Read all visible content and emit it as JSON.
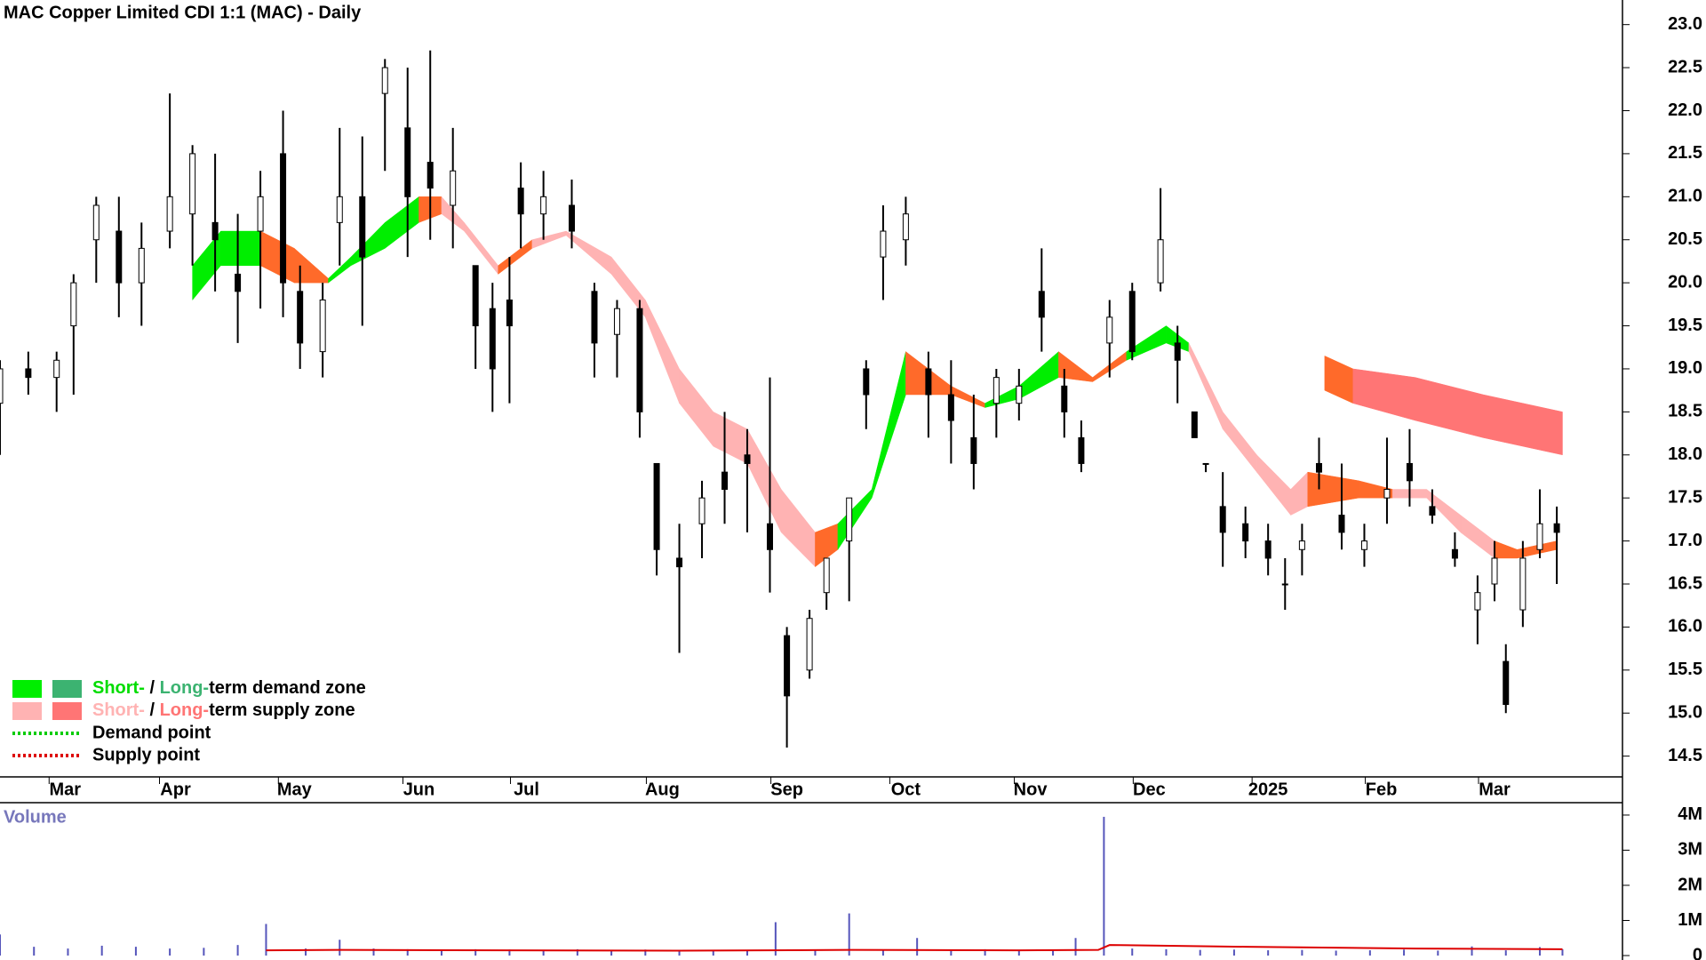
{
  "chart_data": {
    "type": "candlestick",
    "title": "MAC Copper Limited CDI 1:1 (MAC) - Daily",
    "x": [
      0,
      5,
      10,
      13,
      17,
      21,
      25,
      30,
      34,
      38,
      42,
      46,
      50,
      53,
      57,
      60,
      64,
      68,
      72,
      76,
      80,
      84,
      87,
      90,
      92,
      96,
      101,
      105,
      109,
      113,
      116,
      120,
      124,
      128,
      132,
      136,
      139,
      143,
      146,
      150,
      153,
      156,
      160,
      164,
      168,
      172,
      176,
      180,
      184,
      188,
      191,
      196,
      200,
      205,
      208,
      211,
      213,
      216,
      220,
      224,
      227,
      230,
      233,
      237,
      241,
      245,
      249,
      253,
      257,
      261,
      264,
      266,
      269,
      272,
      275
    ],
    "open": [
      18.6,
      19.0,
      18.9,
      19.5,
      20.5,
      20.6,
      20.0,
      20.6,
      20.8,
      20.7,
      20.1,
      20.6,
      21.5,
      19.9,
      19.2,
      20.7,
      21.0,
      22.2,
      21.8,
      21.4,
      20.9,
      20.2,
      19.7,
      19.8,
      21.1,
      20.8,
      20.9,
      19.9,
      19.4,
      19.7,
      17.9,
      16.8,
      17.2,
      17.8,
      18.0,
      17.2,
      15.9,
      15.5,
      16.4,
      17.0,
      19.0,
      20.3,
      20.5,
      19.0,
      18.7,
      18.2,
      18.6,
      18.6,
      19.9,
      18.8,
      18.2,
      19.3,
      19.9,
      20.0,
      19.3,
      18.5,
      17.9,
      17.4,
      17.2,
      17.0,
      16.5,
      16.9,
      17.9,
      17.3,
      16.9,
      17.5,
      17.9,
      17.4,
      16.9,
      16.2,
      16.5,
      15.6,
      16.2,
      16.9,
      17.2
    ],
    "high": [
      19.1,
      19.2,
      19.2,
      20.1,
      21.0,
      21.0,
      20.7,
      22.2,
      21.6,
      21.5,
      20.8,
      21.3,
      22.0,
      20.2,
      20.0,
      21.8,
      21.7,
      22.6,
      22.5,
      22.7,
      21.8,
      20.2,
      20.0,
      20.3,
      21.4,
      21.3,
      21.2,
      20.0,
      19.8,
      19.8,
      17.9,
      17.2,
      17.7,
      18.5,
      18.3,
      18.9,
      16.0,
      16.2,
      16.8,
      17.5,
      19.1,
      20.9,
      21.0,
      19.2,
      19.1,
      18.7,
      19.0,
      19.0,
      20.4,
      19.0,
      18.4,
      19.8,
      20.0,
      21.1,
      19.5,
      18.5,
      17.9,
      17.8,
      17.4,
      17.2,
      16.8,
      17.2,
      18.2,
      17.9,
      17.2,
      18.2,
      18.3,
      17.6,
      17.1,
      16.6,
      17.0,
      15.8,
      17.0,
      17.6,
      17.4
    ],
    "low": [
      18.0,
      18.7,
      18.5,
      18.7,
      20.0,
      19.6,
      19.5,
      20.4,
      20.2,
      19.9,
      19.3,
      19.7,
      19.6,
      19.0,
      18.9,
      20.2,
      19.5,
      21.3,
      20.3,
      20.5,
      20.4,
      19.0,
      18.5,
      18.6,
      20.4,
      20.5,
      20.4,
      18.9,
      18.9,
      18.2,
      16.6,
      15.7,
      16.8,
      17.2,
      17.1,
      16.4,
      14.6,
      15.4,
      16.2,
      16.3,
      18.3,
      19.8,
      20.2,
      18.2,
      17.9,
      17.6,
      18.2,
      18.4,
      19.2,
      18.2,
      17.8,
      18.9,
      19.1,
      19.9,
      18.6,
      18.2,
      17.8,
      16.7,
      16.8,
      16.6,
      16.2,
      16.6,
      17.6,
      16.9,
      16.7,
      17.2,
      17.4,
      17.2,
      16.7,
      15.8,
      16.3,
      15.0,
      16.0,
      16.8,
      16.5
    ],
    "close": [
      19.0,
      18.9,
      19.1,
      20.0,
      20.9,
      20.0,
      20.4,
      21.0,
      21.5,
      20.5,
      19.9,
      21.0,
      20.0,
      19.3,
      19.8,
      21.0,
      20.3,
      22.5,
      21.0,
      21.1,
      21.3,
      19.5,
      19.0,
      19.5,
      20.8,
      21.0,
      20.6,
      19.3,
      19.7,
      18.5,
      16.9,
      16.7,
      17.5,
      17.6,
      17.9,
      16.9,
      15.2,
      16.1,
      16.8,
      17.5,
      18.7,
      20.6,
      20.8,
      18.7,
      18.4,
      17.9,
      18.9,
      18.8,
      19.6,
      18.5,
      17.9,
      19.6,
      19.2,
      20.5,
      19.1,
      18.2,
      17.9,
      17.1,
      17.0,
      16.8,
      16.5,
      17.0,
      17.8,
      17.1,
      17.0,
      17.6,
      17.7,
      17.3,
      16.8,
      16.4,
      16.8,
      15.1,
      16.8,
      17.2,
      17.1
    ],
    "xlim": [
      0,
      286.6
    ],
    "ylim": [
      14.3,
      23.1
    ],
    "yticks": [
      {
        "value": 14.5,
        "label": "14.5"
      },
      {
        "value": 15,
        "label": "15.0"
      },
      {
        "value": 15.5,
        "label": "15.5"
      },
      {
        "value": 16,
        "label": "16.0"
      },
      {
        "value": 16.5,
        "label": "16.5"
      },
      {
        "value": 17,
        "label": "17.0"
      },
      {
        "value": 17.5,
        "label": "17.5"
      },
      {
        "value": 18,
        "label": "18.0"
      },
      {
        "value": 18.5,
        "label": "18.5"
      },
      {
        "value": 19,
        "label": "19.0"
      },
      {
        "value": 19.5,
        "label": "19.5"
      },
      {
        "value": 20,
        "label": "20.0"
      },
      {
        "value": 20.5,
        "label": "20.5"
      },
      {
        "value": 21,
        "label": "21.0"
      },
      {
        "value": 21.5,
        "label": "21.5"
      },
      {
        "value": 22,
        "label": "22.0"
      },
      {
        "value": 22.5,
        "label": "22.5"
      },
      {
        "value": 23,
        "label": "23.0"
      }
    ],
    "xticks": [
      {
        "value": 11.5,
        "label": "Mar"
      },
      {
        "value": 31,
        "label": "Apr"
      },
      {
        "value": 52,
        "label": "May"
      },
      {
        "value": 74,
        "label": "Jun"
      },
      {
        "value": 93,
        "label": "Jul"
      },
      {
        "value": 117,
        "label": "Aug"
      },
      {
        "value": 139,
        "label": "Sep"
      },
      {
        "value": 160,
        "label": "Oct"
      },
      {
        "value": 182,
        "label": "Nov"
      },
      {
        "value": 203,
        "label": "Dec"
      },
      {
        "value": 224,
        "label": "2025"
      },
      {
        "value": 244,
        "label": "Feb"
      },
      {
        "value": 264,
        "label": "Mar"
      }
    ],
    "bands": {
      "x": [
        34,
        39,
        46,
        52,
        58,
        62,
        68,
        74,
        78,
        82,
        88,
        94,
        100,
        108,
        114,
        120,
        126,
        132,
        138,
        144,
        148,
        154,
        160,
        168,
        174,
        180,
        187,
        193,
        199,
        206,
        210,
        216,
        222,
        228,
        231,
        240,
        246,
        252,
        258,
        264,
        268,
        275
      ],
      "upper": [
        20.2,
        20.6,
        20.6,
        20.4,
        20.05,
        20.3,
        20.7,
        21.0,
        21.0,
        20.7,
        20.2,
        20.5,
        20.6,
        20.3,
        19.8,
        19.0,
        18.5,
        18.3,
        17.6,
        17.1,
        17.2,
        17.6,
        19.2,
        18.8,
        18.6,
        18.8,
        19.2,
        18.9,
        19.2,
        19.5,
        19.3,
        18.5,
        18.0,
        17.6,
        17.8,
        17.7,
        17.6,
        17.6,
        17.3,
        17.0,
        16.9,
        17.0
      ],
      "lower": [
        19.8,
        20.2,
        20.2,
        20.0,
        20.0,
        20.2,
        20.4,
        20.7,
        20.8,
        20.6,
        20.1,
        20.4,
        20.55,
        20.1,
        19.6,
        18.6,
        18.1,
        17.9,
        17.1,
        16.7,
        16.9,
        17.5,
        18.7,
        18.7,
        18.55,
        18.65,
        18.9,
        18.85,
        19.1,
        19.3,
        19.2,
        18.3,
        17.8,
        17.3,
        17.4,
        17.5,
        17.5,
        17.5,
        17.1,
        16.8,
        16.8,
        16.9
      ],
      "colors": [
        "#00ee00",
        "#00ee00",
        "#ff6a2a",
        "#ff6a2a",
        "#00ee00",
        "#00ee00",
        "#00ee00",
        "#ff6a2a",
        "#ffb3b3",
        "#ffb3b3",
        "#ff6a2a",
        "#ffb3b3",
        "#ffb3b3",
        "#ffb3b3",
        "#ffb3b3",
        "#ffb3b3",
        "#ffb3b3",
        "#ffb3b3",
        "#ffb3b3",
        "#ff6a2a",
        "#00ee00",
        "#00ee00",
        "#ff6a2a",
        "#ff6a2a",
        "#00ee00",
        "#00ee00",
        "#ff6a2a",
        "#ff6a2a",
        "#00ee00",
        "#00ee00",
        "#ffb3b3",
        "#ffb3b3",
        "#ffb3b3",
        "#ffb3b3",
        "#ff6a2a",
        "#ff6a2a",
        "#ffb3b3",
        "#ffb3b3",
        "#ffb3b3",
        "#ff6a2a",
        "#ff6a2a",
        "#ff6a2a"
      ]
    },
    "long_zone": {
      "x": [
        234,
        239,
        250,
        262,
        276
      ],
      "upper": [
        19.15,
        19.0,
        18.9,
        18.7,
        18.5
      ],
      "lower": [
        18.75,
        18.6,
        18.4,
        18.2,
        18.0
      ],
      "colors": [
        "#ff6a2a",
        "#ff7575",
        "#ff7575",
        "#ff7575",
        "#ff7575"
      ]
    },
    "legend": [
      {
        "swatches": [
          "#00ee00",
          "#3cb371"
        ],
        "short": "Short-",
        "sep": " / ",
        "long": "Long-",
        "rest": "term demand zone",
        "short_color": "#00dd00",
        "long_color": "#3cb371"
      },
      {
        "swatches": [
          "#ffb3b3",
          "#ff7575"
        ],
        "short": "Short-",
        "sep": " / ",
        "long": "Long-",
        "rest": "term supply zone",
        "short_color": "#ffb3b3",
        "long_color": "#ff7575"
      },
      {
        "line_color": "#00cc00",
        "text": "Demand point"
      },
      {
        "line_color": "#dd0000",
        "text": "Supply point"
      }
    ],
    "volume": {
      "label": "Volume",
      "color": "#5555bb",
      "x": [
        0,
        6,
        12,
        18,
        24,
        30,
        36,
        42,
        47,
        54,
        60,
        66,
        72,
        78,
        84,
        90,
        96,
        102,
        108,
        114,
        120,
        126,
        132,
        137,
        144,
        150,
        156,
        162,
        168,
        174,
        180,
        186,
        190,
        195,
        200,
        206,
        212,
        218,
        224,
        230,
        236,
        242,
        248,
        254,
        260,
        266,
        272,
        276
      ],
      "values": [
        600000,
        250000,
        200000,
        280000,
        250000,
        200000,
        220000,
        300000,
        900000,
        200000,
        450000,
        200000,
        180000,
        160000,
        180000,
        170000,
        150000,
        180000,
        160000,
        170000,
        140000,
        160000,
        150000,
        950000,
        170000,
        1200000,
        160000,
        500000,
        170000,
        180000,
        150000,
        160000,
        500000,
        3950000,
        200000,
        180000,
        160000,
        170000,
        150000,
        160000,
        140000,
        150000,
        170000,
        140000,
        260000,
        150000,
        240000,
        180000
      ],
      "ma_x": [
        47,
        60,
        90,
        120,
        150,
        180,
        194,
        196,
        220,
        250,
        276
      ],
      "ma_values": [
        150000,
        160000,
        150000,
        140000,
        160000,
        150000,
        160000,
        300000,
        250000,
        200000,
        180000
      ],
      "ma_color": "#dd0000",
      "ylim": [
        0,
        4100000
      ],
      "yticks": [
        {
          "value": 0,
          "label": "0"
        },
        {
          "value": 1000000,
          "label": "1M"
        },
        {
          "value": 2000000,
          "label": "2M"
        },
        {
          "value": 3000000,
          "label": "3M"
        },
        {
          "value": 4000000,
          "label": "4M"
        }
      ]
    }
  }
}
